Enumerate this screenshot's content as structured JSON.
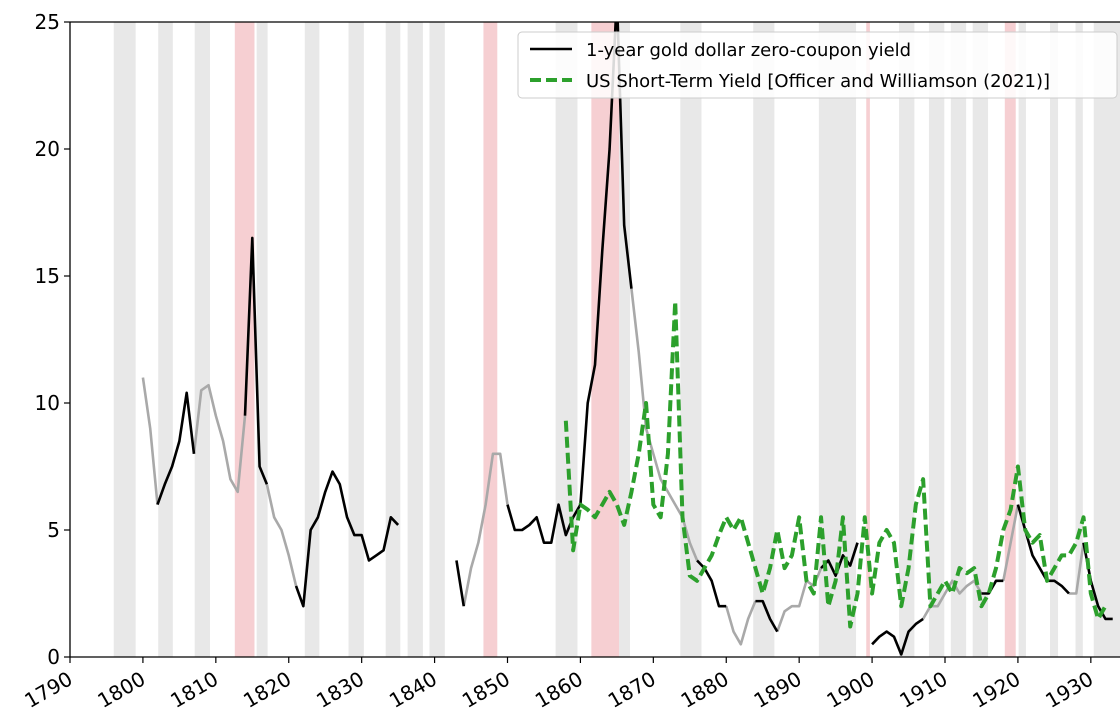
{
  "chart_data": {
    "type": "line",
    "xlim": [
      1790,
      1934
    ],
    "ylim": [
      0,
      25
    ],
    "xticks": [
      1790,
      1800,
      1810,
      1820,
      1830,
      1840,
      1850,
      1860,
      1870,
      1880,
      1890,
      1900,
      1910,
      1920,
      1930
    ],
    "yticks": [
      0,
      5,
      10,
      15,
      20,
      25
    ],
    "legend": "upper right",
    "recession_color": "#e8e8e8",
    "war_color": "#f6cfd2",
    "recession_bands": [
      [
        1796.0,
        1799.0
      ],
      [
        1802.1,
        1804.1
      ],
      [
        1807.1,
        1809.2
      ],
      [
        1815.6,
        1817.1
      ],
      [
        1822.2,
        1824.2
      ],
      [
        1828.2,
        1830.3
      ],
      [
        1833.3,
        1835.3
      ],
      [
        1836.3,
        1838.4
      ],
      [
        1839.3,
        1841.4
      ],
      [
        1856.6,
        1859.6
      ],
      [
        1865.3,
        1866.8
      ],
      [
        1873.7,
        1876.6
      ],
      [
        1883.7,
        1886.6
      ],
      [
        1892.7,
        1897.8
      ],
      [
        1903.7,
        1905.8
      ],
      [
        1907.8,
        1909.9
      ],
      [
        1910.8,
        1912.9
      ],
      [
        1913.8,
        1915.9
      ],
      [
        1920.1,
        1921.1
      ],
      [
        1924.4,
        1925.5
      ],
      [
        1927.9,
        1928.9
      ],
      [
        1930.4,
        1934.0
      ]
    ],
    "war_bands": [
      [
        1812.6,
        1815.3
      ],
      [
        1846.7,
        1848.6
      ],
      [
        1861.5,
        1865.3
      ],
      [
        1899.2,
        1899.7
      ],
      [
        1918.2,
        1919.7
      ]
    ],
    "series": [
      {
        "name": "1-year gold dollar zero-coupon yield",
        "color": "#000000",
        "style": "solid",
        "x": [
          1800,
          1801,
          1802,
          1803,
          1804,
          1805,
          1806,
          1807,
          1808,
          1809,
          1810,
          1811,
          1812,
          1813,
          1814,
          1815,
          1816,
          1817,
          1818,
          1819,
          1820,
          1821,
          1822,
          1823,
          1824,
          1825,
          1826,
          1827,
          1828,
          1829,
          1830,
          1831,
          1832,
          1833,
          1834,
          1835,
          1836,
          1837,
          1838,
          1839,
          1840,
          1841,
          1842,
          1843,
          1844,
          1845,
          1846,
          1847,
          1848,
          1849,
          1850,
          1851,
          1852,
          1853,
          1854,
          1855,
          1856,
          1857,
          1858,
          1859,
          1860,
          1861,
          1862,
          1863,
          1864,
          1865,
          1866,
          1867,
          1868,
          1869,
          1870,
          1871,
          1872,
          1873,
          1874,
          1875,
          1876,
          1877,
          1878,
          1879,
          1880,
          1881,
          1882,
          1883,
          1884,
          1885,
          1886,
          1887,
          1888,
          1889,
          1890,
          1891,
          1892,
          1893,
          1894,
          1895,
          1896,
          1897,
          1898,
          1899,
          1900,
          1901,
          1902,
          1903,
          1904,
          1905,
          1906,
          1907,
          1908,
          1909,
          1910,
          1911,
          1912,
          1913,
          1914,
          1915,
          1916,
          1917,
          1918,
          1919,
          1920,
          1921,
          1922,
          1923,
          1924,
          1925,
          1926,
          1927,
          1928,
          1929,
          1930,
          1931,
          1932,
          1933
        ],
        "values": [
          null,
          null,
          6.0,
          6.8,
          7.5,
          8.5,
          10.4,
          8.0,
          null,
          null,
          null,
          null,
          null,
          null,
          9.5,
          16.5,
          7.5,
          6.8,
          null,
          null,
          null,
          2.8,
          2.0,
          5.0,
          5.5,
          6.5,
          7.3,
          6.8,
          5.5,
          4.8,
          4.8,
          3.8,
          4.0,
          4.2,
          5.5,
          5.2,
          null,
          null,
          null,
          null,
          null,
          null,
          null,
          3.8,
          2.0,
          null,
          null,
          null,
          null,
          null,
          6.0,
          5.0,
          5.0,
          5.2,
          5.5,
          4.5,
          4.5,
          6.0,
          4.8,
          5.5,
          6.0,
          10.0,
          11.5,
          16.0,
          20.0,
          26.0,
          17.0,
          14.5,
          null,
          null,
          null,
          null,
          null,
          null,
          null,
          null,
          3.8,
          3.5,
          3.0,
          2.0,
          2.0,
          null,
          null,
          null,
          2.2,
          2.2,
          1.5,
          1.0,
          null,
          null,
          null,
          null,
          null,
          3.5,
          3.8,
          3.2,
          4.0,
          3.6,
          4.5,
          null,
          0.5,
          0.8,
          1.0,
          0.8,
          0.1,
          1.0,
          1.3,
          1.5,
          null,
          null,
          null,
          null,
          null,
          null,
          null,
          2.5,
          2.5,
          3.0,
          3.0,
          null,
          6.0,
          5.0,
          4.0,
          3.5,
          3.0,
          3.0,
          2.8,
          2.5,
          null,
          4.5,
          3.0,
          2.0,
          1.5,
          1.5
        ]
      },
      {
        "color": "#a9a9a9",
        "style": "solid",
        "x": [
          1800,
          1801,
          1802,
          1803,
          1804,
          1805,
          1806,
          1807,
          1808,
          1809,
          1810,
          1811,
          1812,
          1813,
          1814,
          1815,
          1816,
          1817,
          1818,
          1819,
          1820,
          1821,
          1822,
          1823,
          1824,
          1825,
          1826,
          1827,
          1828,
          1829,
          1830,
          1831,
          1832,
          1833,
          1834,
          1835,
          1836,
          1837,
          1838,
          1839,
          1840,
          1841,
          1842,
          1843,
          1844,
          1845,
          1846,
          1847,
          1848,
          1849,
          1850,
          1851,
          1852,
          1853,
          1854,
          1855,
          1856,
          1857,
          1858,
          1859,
          1860,
          1861,
          1862,
          1863,
          1864,
          1865,
          1866,
          1867,
          1868,
          1869,
          1870,
          1871,
          1872,
          1873,
          1874,
          1875,
          1876,
          1877,
          1878,
          1879,
          1880,
          1881,
          1882,
          1883,
          1884,
          1885,
          1886,
          1887,
          1888,
          1889,
          1890,
          1891,
          1892,
          1893,
          1894,
          1895,
          1896,
          1897,
          1898,
          1899,
          1900,
          1901,
          1902,
          1903,
          1904,
          1905,
          1906,
          1907,
          1908,
          1909,
          1910,
          1911,
          1912,
          1913,
          1914,
          1915,
          1916,
          1917,
          1918,
          1919,
          1920,
          1921,
          1922,
          1923,
          1924,
          1925,
          1926,
          1927,
          1928,
          1929,
          1930,
          1931,
          1932,
          1933
        ],
        "values": [
          11.0,
          9.0,
          6.0,
          null,
          null,
          null,
          null,
          8.0,
          10.5,
          10.7,
          9.5,
          8.5,
          7.0,
          6.5,
          9.5,
          null,
          null,
          6.8,
          5.5,
          5.0,
          4.0,
          2.8,
          null,
          null,
          null,
          null,
          null,
          null,
          null,
          null,
          null,
          null,
          null,
          null,
          null,
          null,
          null,
          null,
          null,
          null,
          null,
          null,
          null,
          null,
          2.0,
          3.5,
          4.5,
          6.0,
          8.0,
          8.0,
          6.0,
          null,
          null,
          null,
          null,
          null,
          null,
          null,
          null,
          null,
          null,
          null,
          null,
          null,
          null,
          null,
          null,
          14.5,
          12.0,
          9.0,
          8.0,
          7.0,
          6.5,
          6.0,
          5.5,
          4.5,
          3.8,
          null,
          null,
          null,
          2.0,
          1.0,
          0.5,
          1.5,
          2.2,
          null,
          null,
          1.0,
          1.8,
          2.0,
          2.0,
          3.0,
          2.8,
          3.5,
          null,
          null,
          null,
          null,
          null,
          null,
          null,
          null,
          null,
          null,
          null,
          null,
          null,
          1.5,
          2.0,
          2.0,
          2.5,
          3.0,
          2.5,
          2.8,
          3.0,
          2.5,
          null,
          null,
          3.0,
          4.5,
          6.0,
          null,
          null,
          null,
          null,
          null,
          null,
          2.5,
          2.5,
          4.5,
          null,
          null,
          null,
          null
        ]
      },
      {
        "name": "US Short-Term Yield [Officer and Williamson (2021)]",
        "color": "#2ca02c",
        "style": "dashed",
        "x": [
          1858,
          1859,
          1860,
          1861,
          1862,
          1863,
          1864,
          1865,
          1866,
          1867,
          1868,
          1869,
          1870,
          1871,
          1872,
          1873,
          1874,
          1875,
          1876,
          1877,
          1878,
          1879,
          1880,
          1881,
          1882,
          1883,
          1884,
          1885,
          1886,
          1887,
          1888,
          1889,
          1890,
          1891,
          1892,
          1893,
          1894,
          1895,
          1896,
          1897,
          1898,
          1899,
          1900,
          1901,
          1902,
          1903,
          1904,
          1905,
          1906,
          1907,
          1908,
          1909,
          1910,
          1911,
          1912,
          1913,
          1914,
          1915,
          1916,
          1917,
          1918,
          1919,
          1920,
          1921,
          1922,
          1923,
          1924,
          1925,
          1926,
          1927,
          1928,
          1929,
          1930,
          1931,
          1932
        ],
        "values": [
          9.3,
          4.2,
          6.0,
          5.8,
          5.5,
          6.0,
          6.5,
          6.0,
          5.2,
          6.5,
          8.0,
          10.0,
          6.0,
          5.5,
          8.0,
          14.0,
          5.5,
          3.2,
          3.0,
          3.5,
          4.0,
          4.8,
          5.5,
          5.0,
          5.5,
          4.5,
          3.5,
          2.5,
          3.5,
          5.0,
          3.5,
          4.0,
          5.5,
          3.0,
          2.5,
          5.5,
          2.0,
          3.0,
          5.5,
          1.2,
          2.5,
          5.5,
          2.5,
          4.5,
          5.0,
          4.5,
          2.0,
          3.5,
          6.0,
          7.0,
          2.0,
          2.5,
          3.0,
          2.5,
          3.5,
          3.3,
          3.5,
          2.0,
          2.5,
          3.5,
          5.0,
          5.8,
          7.5,
          5.0,
          4.5,
          4.8,
          3.0,
          3.5,
          4.0,
          4.0,
          4.5,
          5.5,
          2.5,
          1.5,
          2.0
        ]
      }
    ]
  }
}
